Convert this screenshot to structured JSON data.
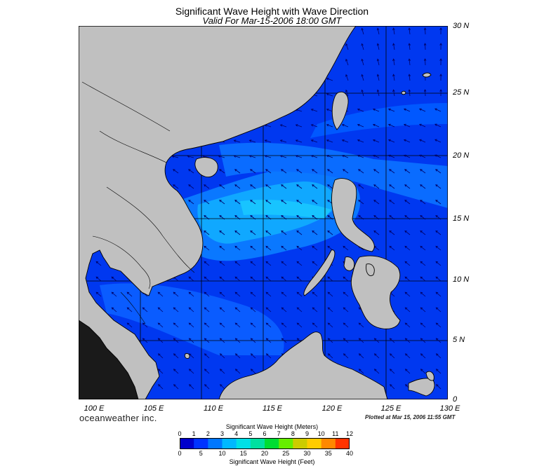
{
  "header": {
    "title": "Significant Wave Height with Wave Direction",
    "subtitle": "Valid For Mar-15-2006 18:00 GMT"
  },
  "map": {
    "lat_labels": [
      "30 N",
      "25 N",
      "20 N",
      "15 N",
      "10 N",
      "5 N",
      "0"
    ],
    "lon_labels": [
      "100 E",
      "105 E",
      "110 E",
      "115 E",
      "120 E",
      "125 E",
      "130 E"
    ],
    "land_color": "#c0c0c0",
    "coast_color": "#000000",
    "grid": true
  },
  "footer": {
    "brand": "oceanweather inc.",
    "plotted": "Plotted at Mar 15, 2006 11:55 GMT"
  },
  "legend": {
    "title_m": "Significant Wave Height (Meters)",
    "title_ft": "Significant Wave Height (Feet)",
    "meters": [
      "0",
      "1",
      "2",
      "3",
      "4",
      "5",
      "6",
      "7",
      "8",
      "9",
      "10",
      "11",
      "12"
    ],
    "feet": [
      "0",
      "5",
      "10",
      "15",
      "20",
      "25",
      "30",
      "35",
      "40"
    ],
    "colors": [
      "#0000cc",
      "#0033ff",
      "#0077ff",
      "#00b8ff",
      "#00e0e6",
      "#00e0a0",
      "#00dd33",
      "#66ee00",
      "#cccc00",
      "#ffcc00",
      "#ff8800",
      "#ff3300"
    ]
  }
}
